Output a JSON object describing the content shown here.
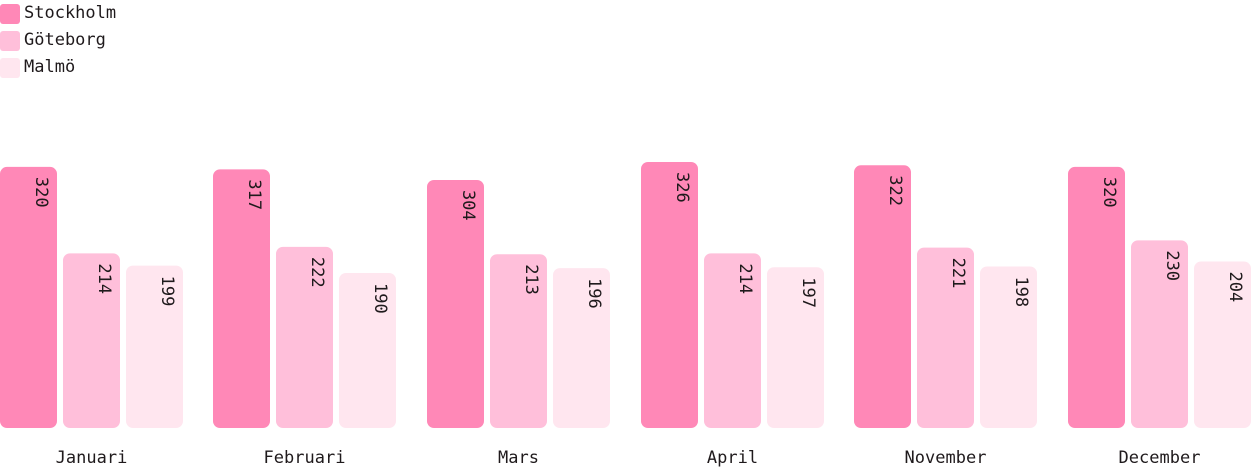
{
  "chart_data": {
    "type": "bar",
    "categories": [
      "Januari",
      "Februari",
      "Mars",
      "April",
      "November",
      "December"
    ],
    "series": [
      {
        "name": "Stockholm",
        "color": "#ff88b7",
        "values": [
          320,
          317,
          304,
          326,
          322,
          320
        ]
      },
      {
        "name": "Göteborg",
        "color": "#ffbfda",
        "values": [
          214,
          222,
          213,
          214,
          221,
          230
        ]
      },
      {
        "name": "Malmö",
        "color": "#ffe6ef",
        "values": [
          199,
          190,
          196,
          197,
          198,
          204
        ]
      }
    ],
    "legend_position": "top-left",
    "grid": false,
    "ylim": [
      0,
      326
    ]
  }
}
